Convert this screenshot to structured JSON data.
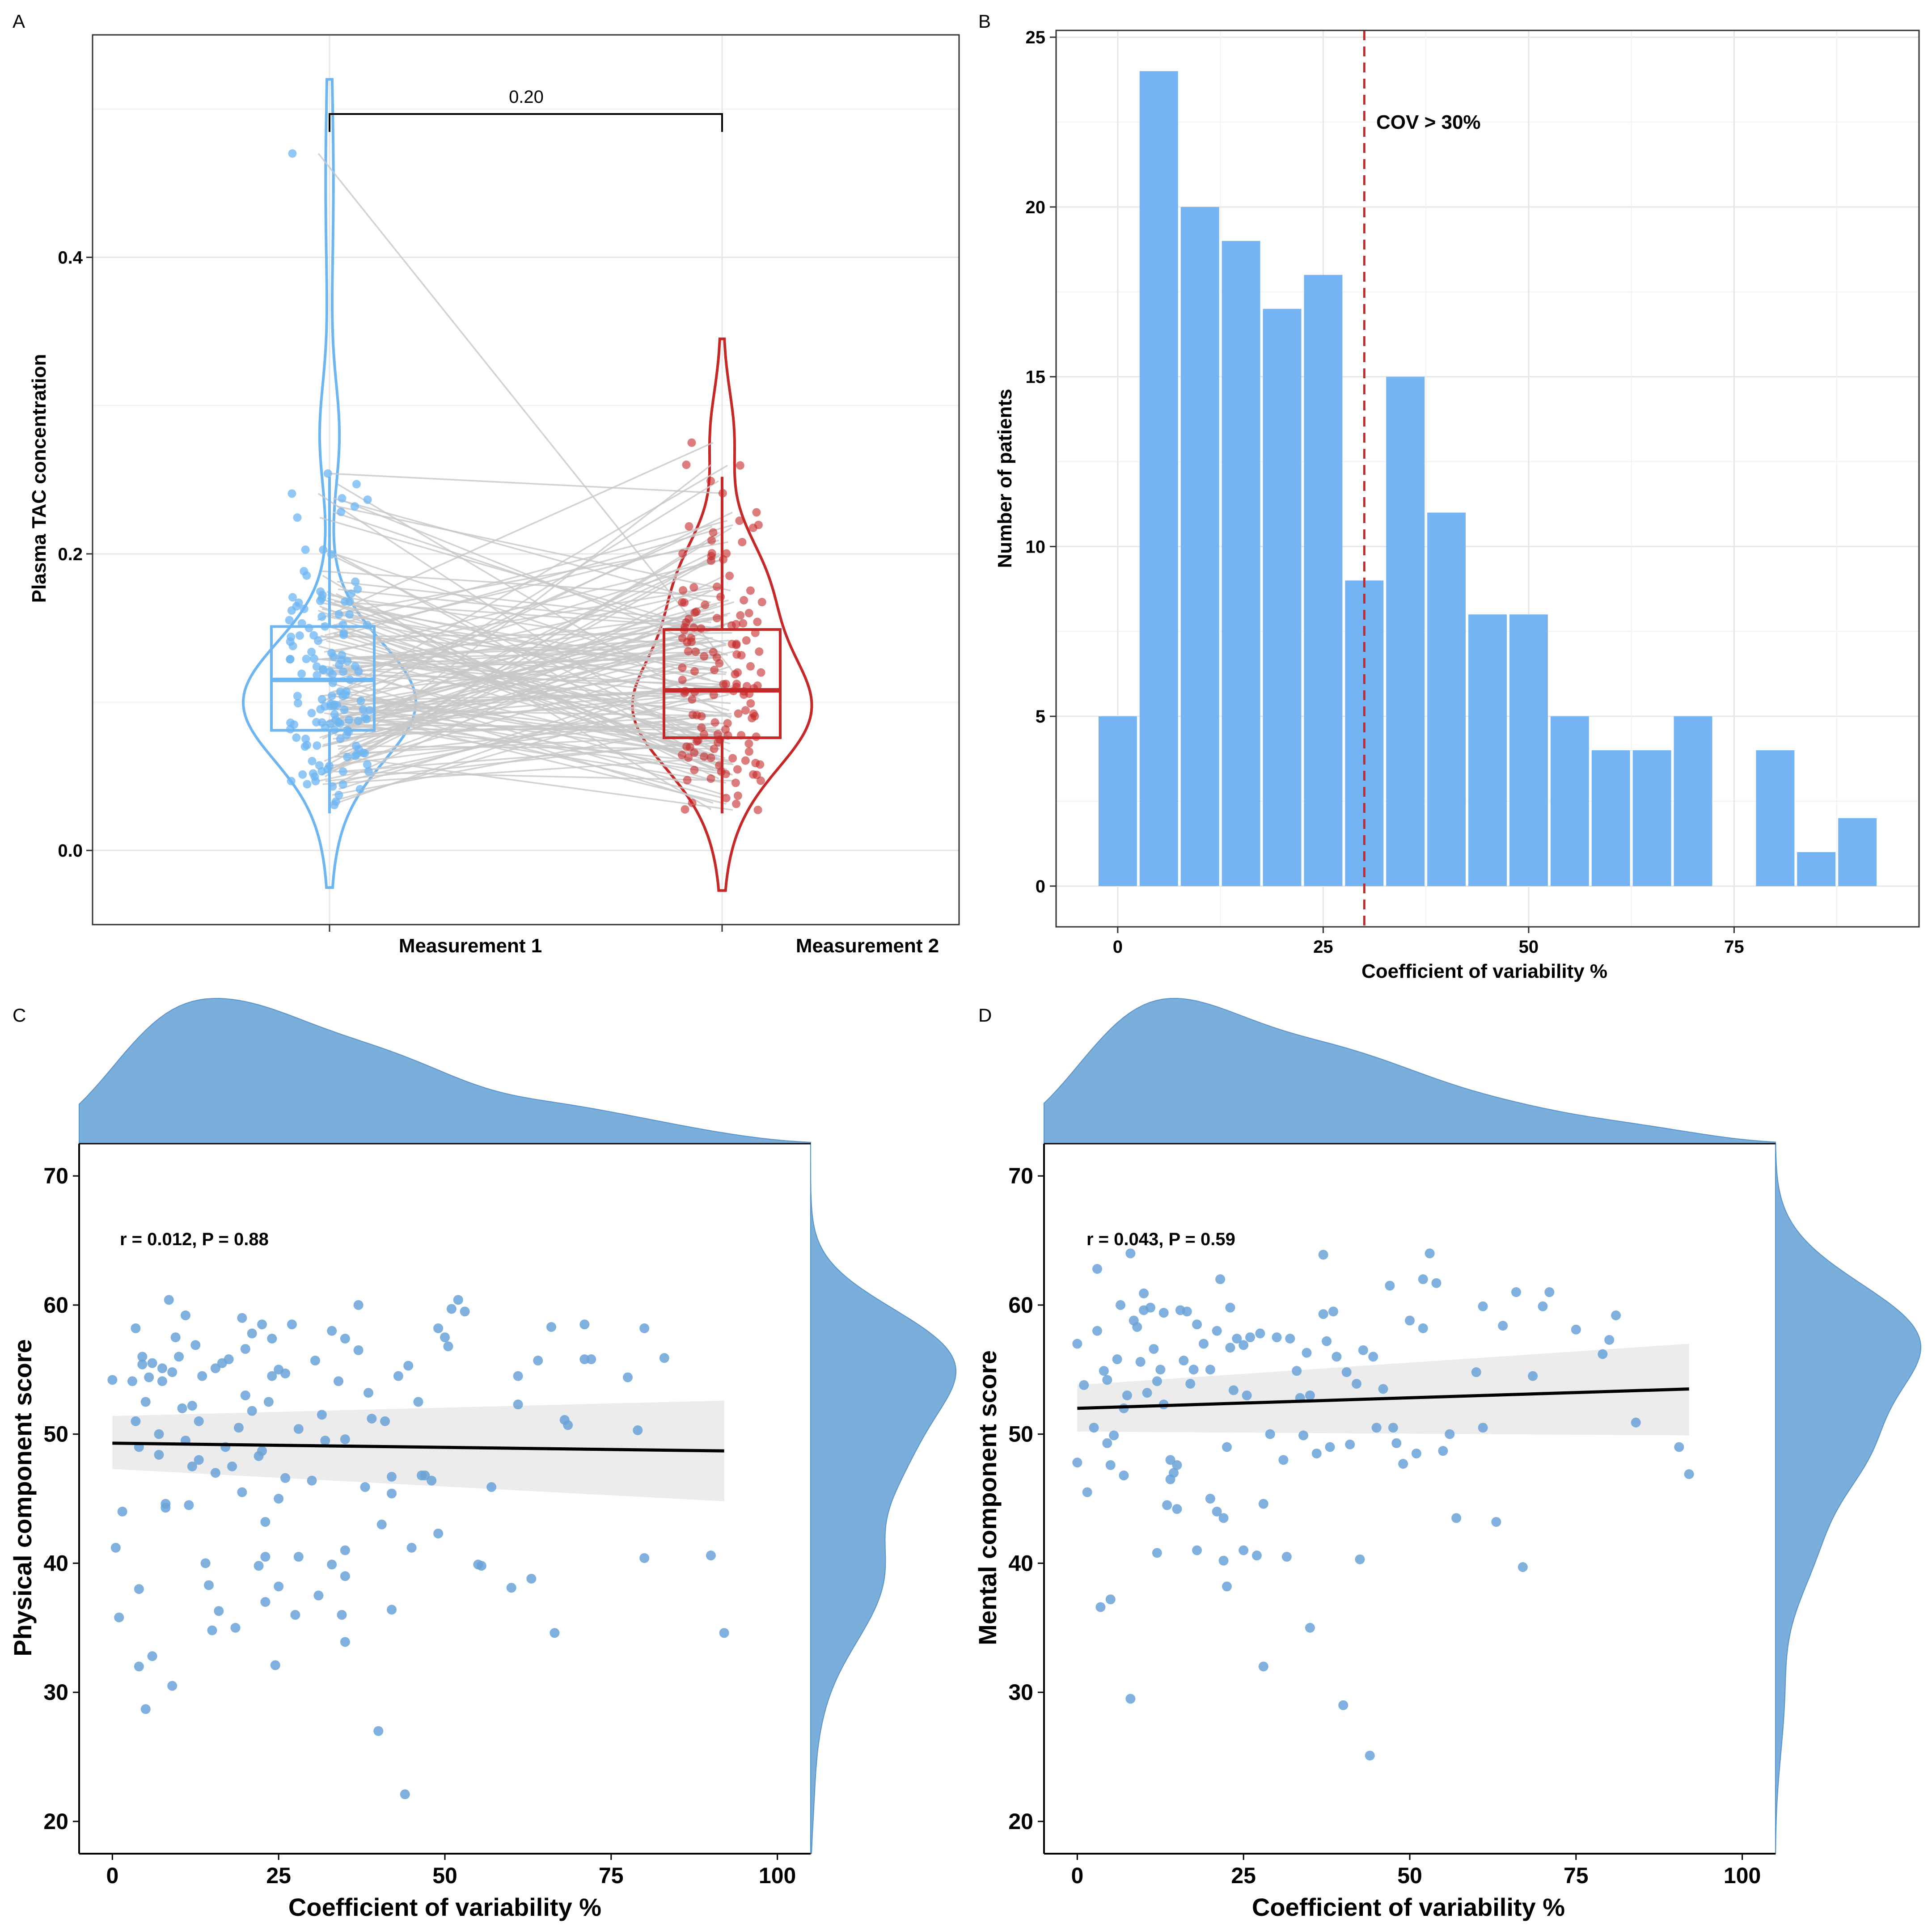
{
  "panels": {
    "A": {
      "label": "A"
    },
    "B": {
      "label": "B"
    },
    "C": {
      "label": "C"
    },
    "D": {
      "label": "D"
    }
  },
  "colors": {
    "blue": "#6db6f2",
    "red": "#c62828",
    "grey_line": "#c8c8c8",
    "hist_blue": "#74b4f5",
    "scatter_blue": "#6aa3d8",
    "density_fill": "#7aaedb",
    "ci_band": "#ebebeb"
  },
  "chart_data": [
    {
      "panel": "A",
      "type": "violin-box-paired",
      "title": "",
      "xlabel": "",
      "ylabel": "Plasma TAC concentration",
      "categories": [
        "Measurement 1",
        "Measurement 2"
      ],
      "ylim": [
        -0.05,
        0.55
      ],
      "yticks": [
        0.0,
        0.2,
        0.4
      ],
      "ytick_labels": [
        "0.0",
        "0.2",
        "0.4"
      ],
      "comparison_label": "0.20",
      "series": [
        {
          "name": "Measurement 1",
          "color": "#6db6f2",
          "median": 0.115,
          "q1": 0.081,
          "q3": 0.151,
          "whisker_low": 0.025,
          "whisker_high": 0.252,
          "min": -0.025,
          "max": 0.52,
          "mode": 0.1
        },
        {
          "name": "Measurement 2",
          "color": "#c62828",
          "median": 0.108,
          "q1": 0.076,
          "q3": 0.149,
          "whisker_low": 0.025,
          "whisker_high": 0.252,
          "min": -0.027,
          "max": 0.345,
          "mode": 0.09
        }
      ]
    },
    {
      "panel": "B",
      "type": "bar",
      "title": "",
      "xlabel": "Coefficient of variability %",
      "ylabel": "Number of patients",
      "bin_width": 5,
      "bin_centers": [
        0,
        5,
        10,
        15,
        20,
        25,
        30,
        35,
        40,
        45,
        50,
        55,
        60,
        65,
        70,
        75,
        80,
        85,
        90
      ],
      "values": [
        5,
        24,
        20,
        19,
        17,
        18,
        9,
        15,
        11,
        8,
        8,
        5,
        4,
        4,
        5,
        0,
        4,
        1,
        2
      ],
      "xlim": [
        -7.5,
        97.5
      ],
      "ylim": [
        -1.2,
        25.2
      ],
      "xticks": [
        0,
        25,
        50,
        75
      ],
      "xtick_labels": [
        "0",
        "25",
        "50",
        "75"
      ],
      "yticks": [
        0,
        5,
        10,
        15,
        20,
        25
      ],
      "ytick_labels": [
        "0",
        "5",
        "10",
        "15",
        "20",
        "25"
      ],
      "reference_line": {
        "x": 30,
        "label": "COV > 30%"
      }
    },
    {
      "panel": "C",
      "type": "scatter",
      "title": "",
      "xlabel": "Coefficient of variability %",
      "ylabel": "Physical component score",
      "annotation": "r = 0.012, P = 0.88",
      "xlim": [
        -5,
        105
      ],
      "ylim": [
        17.5,
        72.5
      ],
      "xticks": [
        0,
        25,
        50,
        75,
        100
      ],
      "xtick_labels": [
        "0",
        "25",
        "50",
        "75",
        "100"
      ],
      "yticks": [
        20,
        30,
        40,
        50,
        60,
        70
      ],
      "ytick_labels": [
        "20",
        "30",
        "40",
        "50",
        "60",
        "70"
      ],
      "fit": {
        "x": [
          0,
          92
        ],
        "y": [
          49.3,
          48.7
        ],
        "ci_low": [
          47.3,
          44.8
        ],
        "ci_high": [
          51.4,
          52.6
        ]
      },
      "points": [
        [
          0,
          54.2
        ],
        [
          0.5,
          41.2
        ],
        [
          1,
          35.8
        ],
        [
          1.5,
          44.0
        ],
        [
          3,
          54.1
        ],
        [
          3.5,
          58.2
        ],
        [
          3.5,
          51.0
        ],
        [
          4,
          38.0
        ],
        [
          4,
          49.0
        ],
        [
          4,
          32.0
        ],
        [
          4.5,
          56.0
        ],
        [
          4.5,
          55.4
        ],
        [
          5,
          52.5
        ],
        [
          5,
          28.7
        ],
        [
          5.5,
          54.4
        ],
        [
          6,
          55.5
        ],
        [
          6,
          32.8
        ],
        [
          7,
          50.0
        ],
        [
          7,
          48.4
        ],
        [
          7.5,
          55.1
        ],
        [
          7.5,
          54.1
        ],
        [
          8,
          44.6
        ],
        [
          8,
          44.3
        ],
        [
          8.5,
          60.4
        ],
        [
          9,
          30.5
        ],
        [
          9,
          54.8
        ],
        [
          9.5,
          57.5
        ],
        [
          10,
          56.0
        ],
        [
          10.5,
          52.0
        ],
        [
          11,
          59.2
        ],
        [
          11,
          49.5
        ],
        [
          11.5,
          44.5
        ],
        [
          12,
          47.5
        ],
        [
          12,
          52.2
        ],
        [
          12.5,
          56.9
        ],
        [
          13,
          48.0
        ],
        [
          13,
          51.0
        ],
        [
          13.5,
          54.5
        ],
        [
          14,
          40.0
        ],
        [
          14.5,
          38.3
        ],
        [
          15,
          34.8
        ],
        [
          15.5,
          47.0
        ],
        [
          15.5,
          55.1
        ],
        [
          16,
          36.3
        ],
        [
          16.5,
          55.5
        ],
        [
          17,
          49.0
        ],
        [
          17.5,
          55.8
        ],
        [
          18,
          47.5
        ],
        [
          18.5,
          35.0
        ],
        [
          19,
          50.5
        ],
        [
          19.5,
          45.5
        ],
        [
          19.5,
          59.0
        ],
        [
          20,
          53.0
        ],
        [
          20,
          56.6
        ],
        [
          21,
          57.8
        ],
        [
          21,
          51.8
        ],
        [
          22,
          48.3
        ],
        [
          22,
          39.8
        ],
        [
          22.5,
          58.5
        ],
        [
          22.5,
          48.7
        ],
        [
          23,
          43.2
        ],
        [
          23,
          37.0
        ],
        [
          23,
          40.5
        ],
        [
          23.5,
          52.5
        ],
        [
          24,
          57.4
        ],
        [
          24,
          54.5
        ],
        [
          24.5,
          32.1
        ],
        [
          25,
          38.2
        ],
        [
          25,
          55.0
        ],
        [
          25,
          45.0
        ],
        [
          26,
          46.6
        ],
        [
          26,
          54.7
        ],
        [
          27,
          58.5
        ],
        [
          27.5,
          36.0
        ],
        [
          28,
          50.4
        ],
        [
          28,
          40.5
        ],
        [
          30,
          46.4
        ],
        [
          30.5,
          55.7
        ],
        [
          31,
          37.5
        ],
        [
          31.5,
          51.5
        ],
        [
          32,
          49.5
        ],
        [
          33,
          58.0
        ],
        [
          33,
          39.9
        ],
        [
          34,
          54.1
        ],
        [
          34.5,
          36.0
        ],
        [
          35,
          57.4
        ],
        [
          35,
          49.6
        ],
        [
          35,
          33.9
        ],
        [
          35,
          41.0
        ],
        [
          35,
          39.0
        ],
        [
          37,
          60.0
        ],
        [
          37,
          56.5
        ],
        [
          38,
          45.9
        ],
        [
          38.5,
          53.2
        ],
        [
          39,
          51.2
        ],
        [
          40,
          27.0
        ],
        [
          40.5,
          43.0
        ],
        [
          41,
          51.0
        ],
        [
          42,
          45.4
        ],
        [
          42,
          36.4
        ],
        [
          42,
          46.7
        ],
        [
          43,
          54.5
        ],
        [
          44,
          22.1
        ],
        [
          44.5,
          55.3
        ],
        [
          45,
          41.2
        ],
        [
          46,
          52.5
        ],
        [
          46.5,
          46.8
        ],
        [
          47,
          46.8
        ],
        [
          48,
          46.4
        ],
        [
          49,
          42.3
        ],
        [
          49,
          58.2
        ],
        [
          50,
          57.5
        ],
        [
          50.5,
          56.8
        ],
        [
          51,
          59.7
        ],
        [
          52,
          60.4
        ],
        [
          53,
          59.5
        ],
        [
          55,
          39.9
        ],
        [
          55.5,
          39.8
        ],
        [
          57,
          45.9
        ],
        [
          60,
          38.1
        ],
        [
          61,
          52.3
        ],
        [
          61,
          54.5
        ],
        [
          63,
          38.8
        ],
        [
          64,
          55.7
        ],
        [
          66,
          58.3
        ],
        [
          66.5,
          34.6
        ],
        [
          68,
          51.1
        ],
        [
          68.5,
          50.7
        ],
        [
          71,
          55.8
        ],
        [
          71,
          58.5
        ],
        [
          72,
          55.8
        ],
        [
          77.5,
          54.4
        ],
        [
          79,
          50.3
        ],
        [
          80,
          58.2
        ],
        [
          80,
          40.4
        ],
        [
          83,
          55.9
        ],
        [
          90,
          40.6
        ],
        [
          92,
          34.6
        ]
      ]
    },
    {
      "panel": "D",
      "type": "scatter",
      "title": "",
      "xlabel": "Coefficient of variability %",
      "ylabel": "Mental component score",
      "annotation": "r = 0.043, P = 0.59",
      "xlim": [
        -5,
        105
      ],
      "ylim": [
        17.5,
        72.5
      ],
      "xticks": [
        0,
        25,
        50,
        75,
        100
      ],
      "xtick_labels": [
        "0",
        "25",
        "50",
        "75",
        "100"
      ],
      "yticks": [
        20,
        30,
        40,
        50,
        60,
        70
      ],
      "ytick_labels": [
        "20",
        "30",
        "40",
        "50",
        "60",
        "70"
      ],
      "fit": {
        "x": [
          0,
          92
        ],
        "y": [
          52.0,
          53.5
        ],
        "ci_low": [
          50.2,
          49.9
        ],
        "ci_high": [
          53.8,
          57.0
        ]
      },
      "points": [
        [
          0,
          57.0
        ],
        [
          0,
          47.8
        ],
        [
          1,
          53.8
        ],
        [
          1.5,
          45.5
        ],
        [
          2.5,
          50.5
        ],
        [
          3,
          58.0
        ],
        [
          3,
          62.8
        ],
        [
          3.5,
          36.6
        ],
        [
          4,
          54.9
        ],
        [
          4.5,
          54.2
        ],
        [
          4.5,
          49.3
        ],
        [
          5,
          37.2
        ],
        [
          5,
          47.6
        ],
        [
          5.5,
          49.9
        ],
        [
          6,
          55.8
        ],
        [
          6.5,
          60.0
        ],
        [
          7,
          52.0
        ],
        [
          7,
          46.8
        ],
        [
          7.5,
          53.0
        ],
        [
          8,
          29.5
        ],
        [
          8,
          64.0
        ],
        [
          8.5,
          58.8
        ],
        [
          9,
          58.3
        ],
        [
          9.5,
          55.6
        ],
        [
          10,
          59.6
        ],
        [
          10,
          60.9
        ],
        [
          10.5,
          53.2
        ],
        [
          11,
          59.8
        ],
        [
          11.5,
          56.6
        ],
        [
          12,
          40.8
        ],
        [
          12,
          54.1
        ],
        [
          12.5,
          55.0
        ],
        [
          13,
          59.4
        ],
        [
          13,
          52.3
        ],
        [
          13.5,
          44.5
        ],
        [
          14,
          48.0
        ],
        [
          14,
          46.5
        ],
        [
          14.5,
          47.0
        ],
        [
          15,
          44.2
        ],
        [
          15,
          47.6
        ],
        [
          15.5,
          59.6
        ],
        [
          16,
          55.7
        ],
        [
          16.5,
          59.5
        ],
        [
          17,
          53.9
        ],
        [
          17.5,
          55.0
        ],
        [
          18,
          41.0
        ],
        [
          18,
          58.5
        ],
        [
          19,
          57.0
        ],
        [
          20,
          45.0
        ],
        [
          20,
          55.0
        ],
        [
          21,
          58.0
        ],
        [
          21,
          44.0
        ],
        [
          21.5,
          62.0
        ],
        [
          22,
          40.2
        ],
        [
          22,
          43.5
        ],
        [
          22.5,
          38.2
        ],
        [
          22.5,
          49.0
        ],
        [
          23,
          56.7
        ],
        [
          23,
          59.8
        ],
        [
          23.5,
          53.4
        ],
        [
          24,
          57.4
        ],
        [
          25,
          41.0
        ],
        [
          25,
          56.9
        ],
        [
          25.5,
          53.0
        ],
        [
          26,
          57.5
        ],
        [
          27,
          40.6
        ],
        [
          27.5,
          57.8
        ],
        [
          28,
          44.6
        ],
        [
          28,
          32.0
        ],
        [
          29,
          50.0
        ],
        [
          30,
          57.5
        ],
        [
          31,
          48.0
        ],
        [
          31.5,
          40.5
        ],
        [
          32,
          57.4
        ],
        [
          33,
          54.9
        ],
        [
          33.5,
          52.8
        ],
        [
          34,
          49.9
        ],
        [
          34.5,
          56.3
        ],
        [
          35,
          35.0
        ],
        [
          35,
          53.0
        ],
        [
          36,
          48.5
        ],
        [
          37,
          59.3
        ],
        [
          37,
          63.9
        ],
        [
          37.5,
          57.2
        ],
        [
          38,
          49.0
        ],
        [
          38.5,
          59.5
        ],
        [
          39,
          56.0
        ],
        [
          40,
          29.0
        ],
        [
          40.5,
          54.8
        ],
        [
          41,
          49.2
        ],
        [
          42,
          53.9
        ],
        [
          42.5,
          40.3
        ],
        [
          43,
          56.5
        ],
        [
          44,
          25.1
        ],
        [
          44.5,
          56.0
        ],
        [
          45,
          50.5
        ],
        [
          46,
          53.5
        ],
        [
          47,
          61.5
        ],
        [
          47.5,
          50.5
        ],
        [
          48,
          49.3
        ],
        [
          49,
          47.7
        ],
        [
          50,
          58.8
        ],
        [
          51,
          48.5
        ],
        [
          52,
          58.2
        ],
        [
          52,
          62.0
        ],
        [
          53,
          64.0
        ],
        [
          54,
          61.7
        ],
        [
          55,
          48.7
        ],
        [
          56,
          50.0
        ],
        [
          57,
          43.5
        ],
        [
          60,
          54.8
        ],
        [
          61,
          59.9
        ],
        [
          61,
          50.5
        ],
        [
          63,
          43.2
        ],
        [
          64,
          58.4
        ],
        [
          66,
          61.0
        ],
        [
          67,
          39.7
        ],
        [
          68.5,
          54.5
        ],
        [
          70,
          59.9
        ],
        [
          71,
          61.0
        ],
        [
          75,
          58.1
        ],
        [
          79,
          56.2
        ],
        [
          80,
          57.3
        ],
        [
          81,
          59.2
        ],
        [
          84,
          50.9
        ],
        [
          90.5,
          49.0
        ],
        [
          92,
          46.9
        ]
      ]
    }
  ]
}
